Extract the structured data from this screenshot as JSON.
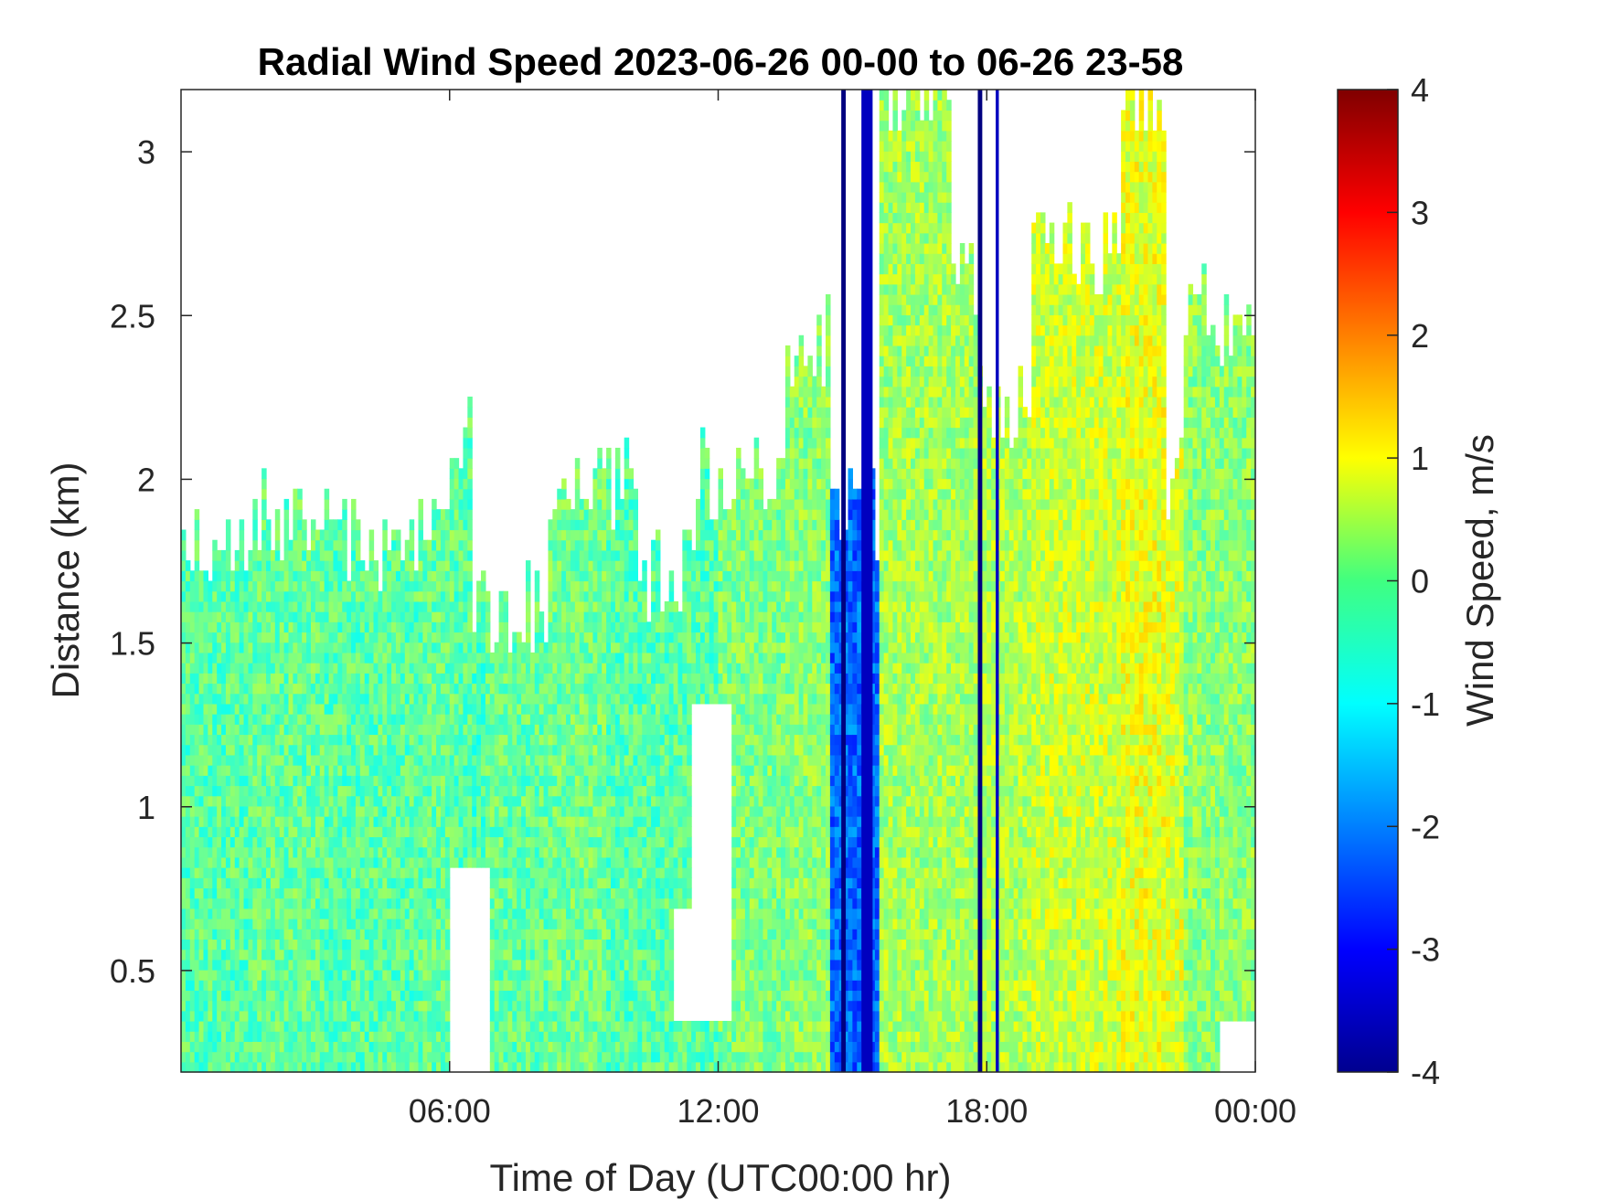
{
  "chart_data": {
    "type": "heatmap",
    "title": "Radial Wind Speed 2023-06-26 00-00 to 06-26 23-58",
    "xlabel": "Time of Day (UTC00:00 hr)",
    "ylabel": "Distance (km)",
    "x_range_hours": [
      0,
      24
    ],
    "x_ticks": [
      {
        "hour": 6,
        "label": "06:00"
      },
      {
        "hour": 12,
        "label": "12:00"
      },
      {
        "hour": 18,
        "label": "18:00"
      },
      {
        "hour": 24,
        "label": "00:00"
      }
    ],
    "ylim": [
      0.19,
      3.19
    ],
    "y_ticks": [
      {
        "value": 0.5,
        "label": "0.5"
      },
      {
        "value": 1,
        "label": "1"
      },
      {
        "value": 1.5,
        "label": "1.5"
      },
      {
        "value": 2,
        "label": "2"
      },
      {
        "value": 2.5,
        "label": "2.5"
      },
      {
        "value": 3,
        "label": "3"
      }
    ],
    "colorbar": {
      "label": "Wind Speed, m/s",
      "clim": [
        -4,
        4
      ],
      "colormap": "jet",
      "ticks": [
        "4",
        "3",
        "2",
        "1",
        "0",
        "-1",
        "-2",
        "-3",
        "-4"
      ]
    },
    "grid": false,
    "profile_segments": [
      {
        "t0": 0.0,
        "t1": 1.5,
        "top_km": 1.8,
        "mean": -0.3
      },
      {
        "t0": 1.5,
        "t1": 3.2,
        "top_km": 1.9,
        "mean": -0.2
      },
      {
        "t0": 3.2,
        "t1": 4.2,
        "top_km": 1.85,
        "mean": -0.3
      },
      {
        "t0": 4.2,
        "t1": 5.3,
        "top_km": 1.75,
        "mean": -0.3
      },
      {
        "t0": 5.3,
        "t1": 6.1,
        "top_km": 1.95,
        "mean": -0.2
      },
      {
        "t0": 6.1,
        "t1": 6.5,
        "top_km": 2.1,
        "mean": -0.3
      },
      {
        "t0": 6.5,
        "t1": 6.8,
        "top_km": 1.6,
        "mean": -0.4
      },
      {
        "t0": 6.8,
        "t1": 8.2,
        "top_km": 1.6,
        "mean": -0.2
      },
      {
        "t0": 8.2,
        "t1": 9.5,
        "top_km": 2.0,
        "mean": -0.1
      },
      {
        "t0": 9.5,
        "t1": 10.2,
        "top_km": 2.0,
        "mean": -0.3
      },
      {
        "t0": 10.2,
        "t1": 11.5,
        "top_km": 1.7,
        "mean": -0.3
      },
      {
        "t0": 11.5,
        "t1": 12.0,
        "top_km": 2.0,
        "mean": -0.3
      },
      {
        "t0": 12.0,
        "t1": 13.5,
        "top_km": 2.0,
        "mean": 0.0
      },
      {
        "t0": 13.5,
        "t1": 14.5,
        "top_km": 2.4,
        "mean": 0.1
      },
      {
        "t0": 14.5,
        "t1": 15.6,
        "top_km": 1.9,
        "mean": -2.2
      },
      {
        "t0": 15.6,
        "t1": 17.2,
        "top_km": 3.19,
        "mean": 0.3
      },
      {
        "t0": 17.2,
        "t1": 17.8,
        "top_km": 2.6,
        "mean": 0.3
      },
      {
        "t0": 17.8,
        "t1": 19.0,
        "top_km": 2.2,
        "mean": 0.4
      },
      {
        "t0": 19.0,
        "t1": 21.0,
        "top_km": 2.7,
        "mean": 0.6
      },
      {
        "t0": 21.0,
        "t1": 22.0,
        "top_km": 3.19,
        "mean": 0.8
      },
      {
        "t0": 22.0,
        "t1": 22.4,
        "top_km": 2.0,
        "mean": 0.7
      },
      {
        "t0": 22.4,
        "t1": 24.0,
        "top_km": 2.5,
        "mean": 0.1
      }
    ],
    "data_gaps": [
      {
        "t0": 6.0,
        "t1": 6.9,
        "bottom_km": 0.2,
        "top_km": 0.8
      },
      {
        "t0": 11.0,
        "t1": 11.4,
        "bottom_km": 0.35,
        "top_km": 0.7
      },
      {
        "t0": 11.4,
        "t1": 12.3,
        "bottom_km": 0.35,
        "top_km": 1.3
      },
      {
        "t0": 23.2,
        "t1": 24.0,
        "bottom_km": 0.19,
        "top_km": 0.35
      }
    ],
    "strong_negative_bands": [
      {
        "t0": 14.75,
        "t1": 14.85,
        "value": -4
      },
      {
        "t0": 15.2,
        "t1": 15.45,
        "value": -3.5
      },
      {
        "t0": 17.8,
        "t1": 17.9,
        "value": -4
      },
      {
        "t0": 18.2,
        "t1": 18.27,
        "value": -3.5
      }
    ]
  }
}
